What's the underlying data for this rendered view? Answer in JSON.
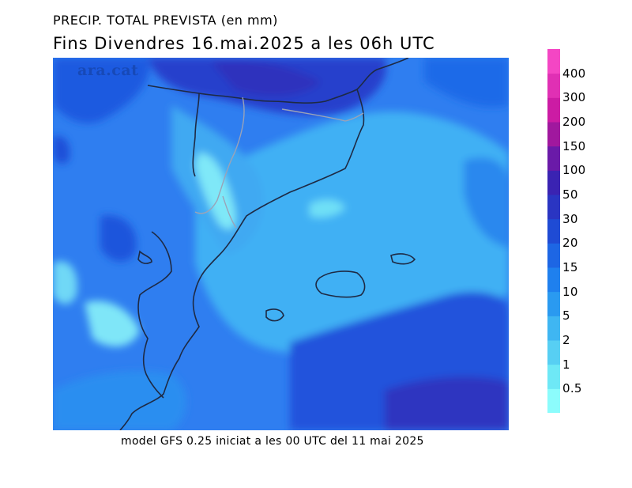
{
  "title_line1": "PRECIP. TOTAL PREVISTA (en mm)",
  "title_line2": "Fins Divendres 16.mai.2025 a les 06h UTC",
  "footer": "model GFS 0.25 iniciat a les 00 UTC del 11 mai 2025",
  "watermark": "ara.cat",
  "legend": {
    "levels": [
      "0.5",
      "1",
      "2",
      "5",
      "10",
      "15",
      "20",
      "30",
      "50",
      "100",
      "150",
      "200",
      "300",
      "400"
    ],
    "colors": [
      "#8cfcfc",
      "#6ee8f6",
      "#57cff3",
      "#3fb6f2",
      "#2a9af0",
      "#1f80ee",
      "#1d66e4",
      "#1f4bd4",
      "#2a35c2",
      "#3a23b2",
      "#6a1aa8",
      "#a0189e",
      "#cc1ca4",
      "#e030b4",
      "#f446c4"
    ]
  }
}
